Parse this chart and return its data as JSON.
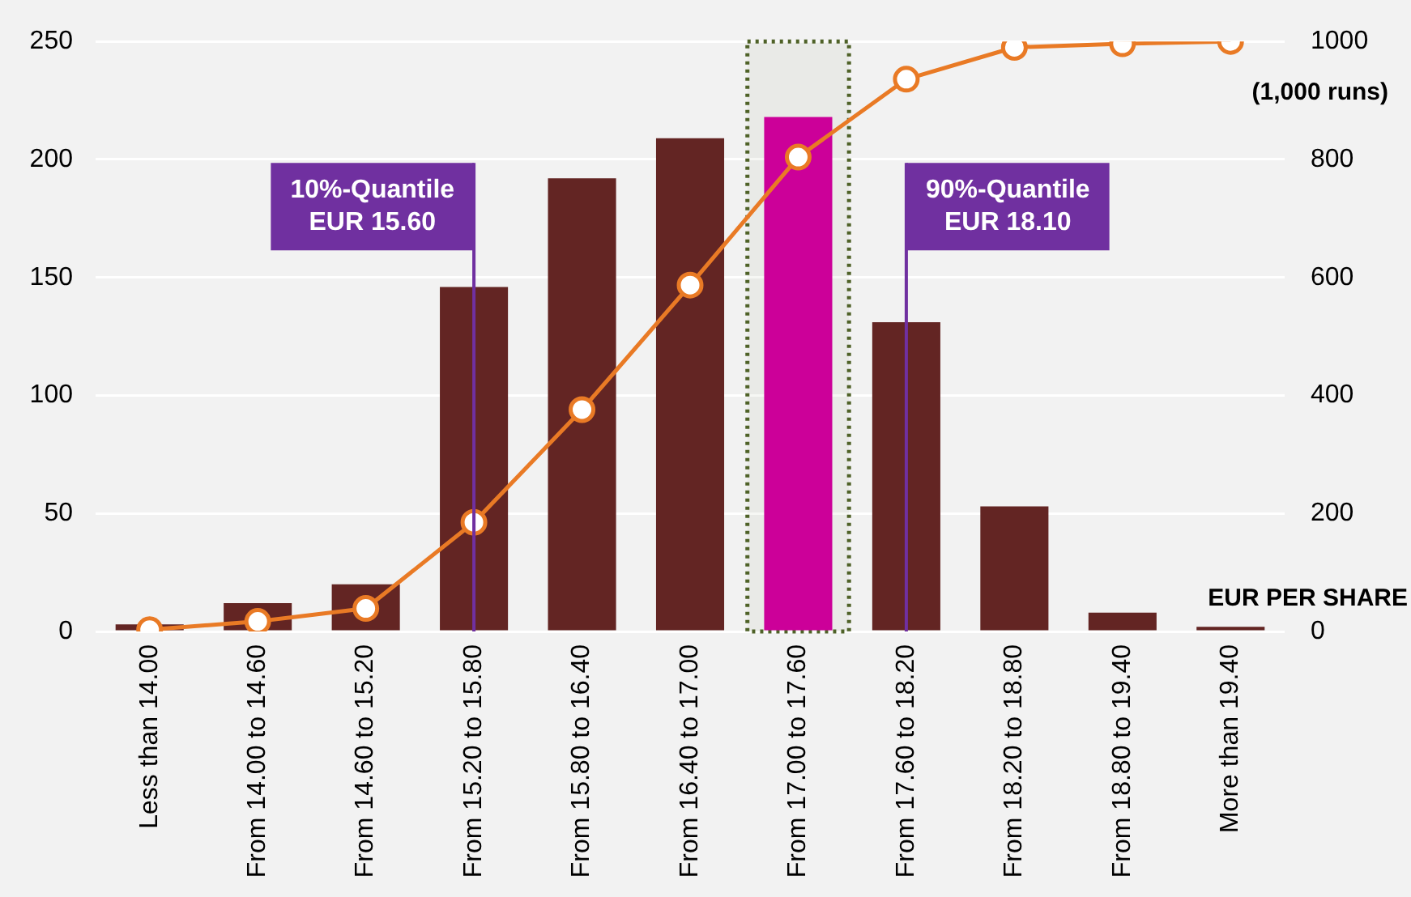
{
  "chart_data": {
    "type": "bar",
    "xlabel": "EUR PER SHARE",
    "y2label": "(1,000 runs)",
    "categories": [
      "Less than 14.00",
      "From 14.00 to 14.60",
      "From 14.60 to 15.20",
      "From 15.20 to 15.80",
      "From 15.80 to 16.40",
      "From 16.40 to 17.00",
      "From 17.00 to 17.60",
      "From 17.60 to 18.20",
      "From 18.20 to 18.80",
      "From 18.80 to 19.40",
      "More than 19.40"
    ],
    "series": [
      {
        "colors": [
          "#632523",
          "#632523",
          "#632523",
          "#632523",
          "#632523",
          "#632523",
          "#cc0099",
          "#632523",
          "#632523",
          "#632523",
          "#632523"
        ],
        "values": [
          3,
          12,
          20,
          146,
          192,
          209,
          218,
          131,
          53,
          8,
          2
        ]
      },
      {
        "type": "line",
        "axis": "y2",
        "color": "#e97a25",
        "values": [
          3,
          17,
          39,
          185,
          376,
          587,
          804,
          936,
          990,
          996,
          1000
        ]
      }
    ],
    "ylim": [
      0,
      250
    ],
    "yticks": [
      0,
      50,
      100,
      150,
      200,
      250
    ],
    "y2lim": [
      0,
      1000
    ],
    "y2ticks": [
      0,
      200,
      400,
      600,
      800,
      1000
    ],
    "grid": "y",
    "legend": false,
    "marker": "circle",
    "line_style": "solid",
    "ref_lines": [
      {
        "axis": "x",
        "value": "From 15.20 to 15.80",
        "label": "10%-Quantile\nEUR 15.60",
        "color": "#7030a0"
      },
      {
        "axis": "x",
        "value": "From 17.60 to 18.20",
        "label": "90%-Quantile\nEUR 18.10",
        "color": "#7030a0"
      }
    ],
    "bands": [
      {
        "axis": "x",
        "from": "From 17.00 to 17.60",
        "to": "From 17.00 to 17.60",
        "color": "#4f6228"
      }
    ]
  }
}
